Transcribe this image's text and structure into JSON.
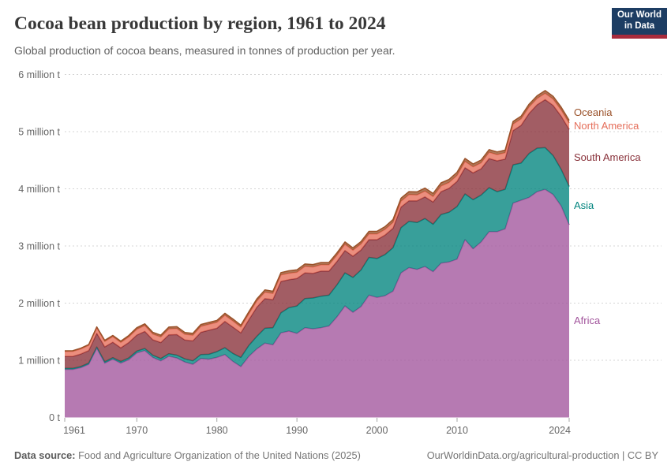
{
  "header": {
    "title": "Cocoa bean production by region, 1961 to 2024",
    "subtitle": "Global production of cocoa beans, measured in tonnes of production per year.",
    "logo": {
      "line1": "Our World",
      "line2": "in Data",
      "bg_color": "#1d3d63",
      "bar_color": "#a82b3c"
    }
  },
  "footer": {
    "source_label": "Data source:",
    "source_text": " Food and Agriculture Organization of the United Nations (2025)",
    "right_text": "OurWorldinData.org/agricultural-production | CC BY"
  },
  "chart_data": {
    "type": "area",
    "stacked": true,
    "title": "Cocoa bean production by region, 1961 to 2024",
    "xlabel": "",
    "ylabel": "",
    "unit": "tonnes per year",
    "values_unit": "million tonnes",
    "xlim": [
      1961,
      2024
    ],
    "ylim": [
      0,
      6
    ],
    "grid": "dashed horizontal",
    "legend_position": "right edge of areas, top to bottom: Oceania, North America, South America, Asia, Africa",
    "x_ticks": [
      1961,
      1970,
      1980,
      1990,
      2000,
      2010,
      2024
    ],
    "y_ticks": [
      {
        "value": 0,
        "label": "0 t"
      },
      {
        "value": 1,
        "label": "1 million t"
      },
      {
        "value": 2,
        "label": "2 million t"
      },
      {
        "value": 3,
        "label": "3 million t"
      },
      {
        "value": 4,
        "label": "4 million t"
      },
      {
        "value": 5,
        "label": "5 million t"
      },
      {
        "value": 6,
        "label": "6 million t"
      }
    ],
    "x": [
      1961,
      1962,
      1963,
      1964,
      1965,
      1966,
      1967,
      1968,
      1969,
      1970,
      1971,
      1972,
      1973,
      1974,
      1975,
      1976,
      1977,
      1978,
      1979,
      1980,
      1981,
      1982,
      1983,
      1984,
      1985,
      1986,
      1987,
      1988,
      1989,
      1990,
      1991,
      1992,
      1993,
      1994,
      1995,
      1996,
      1997,
      1998,
      1999,
      2000,
      2001,
      2002,
      2003,
      2004,
      2005,
      2006,
      2007,
      2008,
      2009,
      2010,
      2011,
      2012,
      2013,
      2014,
      2015,
      2016,
      2017,
      2018,
      2019,
      2020,
      2021,
      2022,
      2023,
      2024
    ],
    "series": [
      {
        "name": "Africa",
        "color": "#A2559C",
        "values": [
          0.84,
          0.84,
          0.87,
          0.93,
          1.21,
          0.95,
          1.02,
          0.95,
          1.01,
          1.13,
          1.17,
          1.05,
          0.99,
          1.07,
          1.04,
          0.97,
          0.93,
          1.03,
          1.02,
          1.05,
          1.1,
          0.98,
          0.89,
          1.07,
          1.2,
          1.3,
          1.27,
          1.48,
          1.51,
          1.47,
          1.57,
          1.55,
          1.57,
          1.6,
          1.76,
          1.95,
          1.84,
          1.94,
          2.14,
          2.1,
          2.13,
          2.21,
          2.53,
          2.62,
          2.59,
          2.64,
          2.55,
          2.7,
          2.72,
          2.77,
          3.11,
          2.95,
          3.07,
          3.25,
          3.25,
          3.3,
          3.75,
          3.8,
          3.85,
          3.95,
          3.99,
          3.9,
          3.7,
          3.37
        ]
      },
      {
        "name": "Asia",
        "color": "#00847E",
        "values": [
          0.018,
          0.018,
          0.019,
          0.02,
          0.022,
          0.024,
          0.026,
          0.028,
          0.03,
          0.032,
          0.035,
          0.038,
          0.04,
          0.045,
          0.05,
          0.055,
          0.06,
          0.07,
          0.085,
          0.1,
          0.12,
          0.14,
          0.16,
          0.19,
          0.22,
          0.26,
          0.3,
          0.35,
          0.41,
          0.48,
          0.51,
          0.54,
          0.55,
          0.54,
          0.56,
          0.58,
          0.61,
          0.64,
          0.66,
          0.68,
          0.72,
          0.76,
          0.79,
          0.81,
          0.82,
          0.84,
          0.83,
          0.85,
          0.87,
          0.92,
          0.8,
          0.86,
          0.82,
          0.77,
          0.7,
          0.69,
          0.67,
          0.65,
          0.77,
          0.76,
          0.73,
          0.68,
          0.64,
          0.67
        ]
      },
      {
        "name": "South America",
        "color": "#883039",
        "values": [
          0.21,
          0.21,
          0.22,
          0.22,
          0.24,
          0.26,
          0.27,
          0.24,
          0.27,
          0.28,
          0.3,
          0.27,
          0.28,
          0.33,
          0.36,
          0.33,
          0.35,
          0.39,
          0.42,
          0.41,
          0.46,
          0.46,
          0.43,
          0.45,
          0.51,
          0.52,
          0.49,
          0.55,
          0.49,
          0.48,
          0.45,
          0.43,
          0.44,
          0.42,
          0.41,
          0.39,
          0.37,
          0.35,
          0.31,
          0.33,
          0.34,
          0.34,
          0.36,
          0.36,
          0.38,
          0.38,
          0.39,
          0.4,
          0.42,
          0.44,
          0.46,
          0.47,
          0.46,
          0.51,
          0.54,
          0.53,
          0.6,
          0.66,
          0.7,
          0.76,
          0.84,
          0.88,
          0.93,
          1.0
        ]
      },
      {
        "name": "North America",
        "color": "#E56E5A",
        "values": [
          0.085,
          0.086,
          0.088,
          0.09,
          0.095,
          0.096,
          0.098,
          0.094,
          0.098,
          0.1,
          0.103,
          0.1,
          0.098,
          0.103,
          0.104,
          0.1,
          0.099,
          0.103,
          0.104,
          0.104,
          0.108,
          0.108,
          0.1,
          0.104,
          0.108,
          0.112,
          0.108,
          0.113,
          0.113,
          0.11,
          0.113,
          0.113,
          0.11,
          0.11,
          0.11,
          0.109,
          0.105,
          0.104,
          0.1,
          0.1,
          0.1,
          0.103,
          0.104,
          0.108,
          0.104,
          0.1,
          0.096,
          0.099,
          0.1,
          0.104,
          0.109,
          0.105,
          0.104,
          0.108,
          0.109,
          0.11,
          0.113,
          0.114,
          0.114,
          0.11,
          0.11,
          0.11,
          0.109,
          0.11
        ]
      },
      {
        "name": "Oceania",
        "color": "#9A5129",
        "values": [
          0.012,
          0.013,
          0.014,
          0.015,
          0.017,
          0.019,
          0.021,
          0.023,
          0.025,
          0.027,
          0.029,
          0.03,
          0.03,
          0.032,
          0.033,
          0.032,
          0.032,
          0.033,
          0.033,
          0.033,
          0.034,
          0.035,
          0.034,
          0.036,
          0.036,
          0.038,
          0.039,
          0.041,
          0.042,
          0.042,
          0.041,
          0.042,
          0.04,
          0.04,
          0.04,
          0.042,
          0.041,
          0.042,
          0.045,
          0.047,
          0.048,
          0.05,
          0.052,
          0.052,
          0.052,
          0.053,
          0.052,
          0.055,
          0.054,
          0.055,
          0.052,
          0.05,
          0.048,
          0.047,
          0.047,
          0.046,
          0.046,
          0.047,
          0.047,
          0.048,
          0.048,
          0.048,
          0.048,
          0.048
        ]
      }
    ],
    "style": {
      "grid_color": "#d4d4d4",
      "axis_text_color": "#666666",
      "tick_color": "#a5a5a5",
      "area_opacity": 0.78,
      "line_width": 1.5
    }
  }
}
